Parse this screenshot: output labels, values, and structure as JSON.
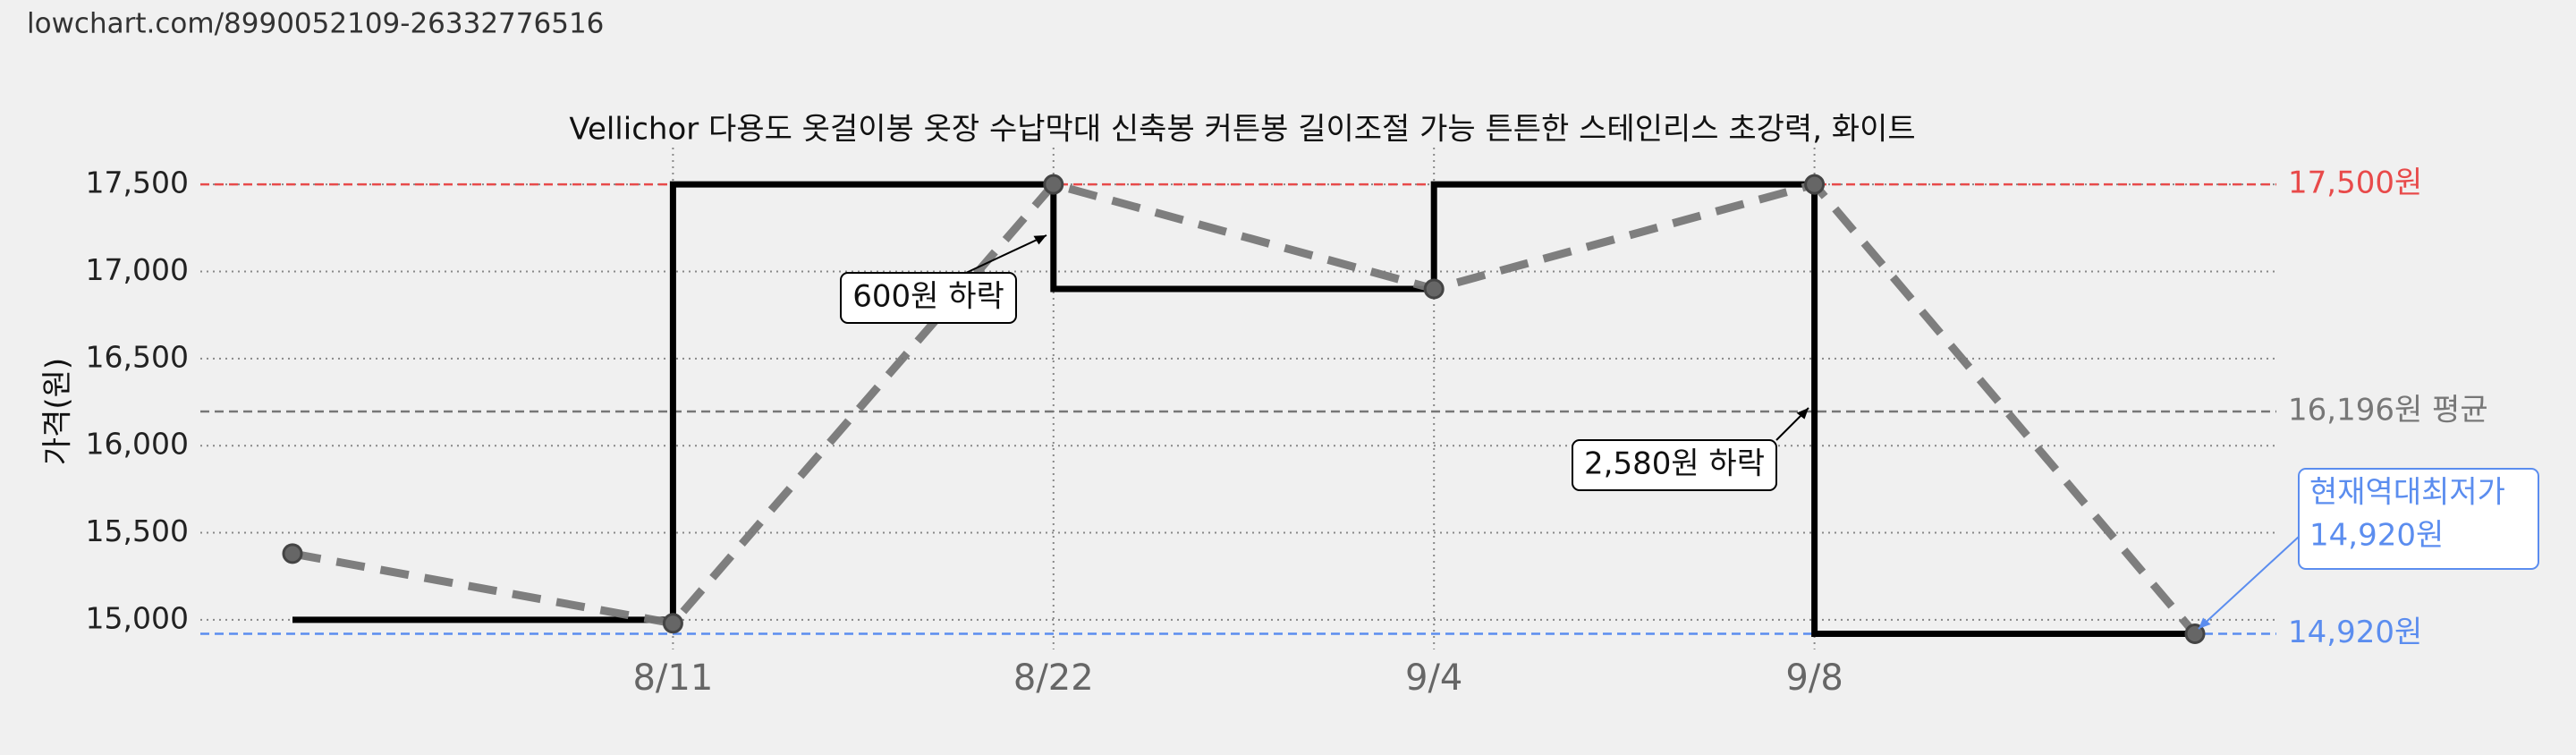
{
  "url": "lowchart.com/8990052109-26332776516",
  "chart_data": {
    "type": "line",
    "title": "Vellichor 다용도 옷걸이봉 옷장 수납막대 신축봉 커튼봉 길이조절 가능 튼튼한 스테인리스 초강력, 화이트",
    "y_label": "가격(원)",
    "categories": [
      null,
      "8/11",
      "8/22",
      "9/4",
      "9/8",
      null
    ],
    "series": [
      {
        "style": "dashed",
        "color": "#777777",
        "values": [
          15380,
          14980,
          17500,
          16900,
          17500,
          14920
        ]
      },
      {
        "style": "step",
        "color": "#000000",
        "values": [
          15000,
          17500,
          16900,
          17500,
          14920,
          14920
        ]
      }
    ],
    "ylim": [
      14830,
      17660
    ],
    "yticks": [
      {
        "value": 15000,
        "label": "15,000"
      },
      {
        "value": 15500,
        "label": "15,500"
      },
      {
        "value": 16000,
        "label": "16,000"
      },
      {
        "value": 16500,
        "label": "16,500"
      },
      {
        "value": 17000,
        "label": "17,000"
      },
      {
        "value": 17500,
        "label": "17,500"
      }
    ],
    "grid": true,
    "reference_lines": [
      {
        "value": 17500,
        "label": "17,500원",
        "color": "#e84a4a"
      },
      {
        "value": 16196,
        "label": "16,196원 평균",
        "color": "#777777"
      },
      {
        "value": 14920,
        "label": "14,920원",
        "color": "#5b8def"
      }
    ],
    "annotations": [
      {
        "lines": [
          "600원 하락"
        ],
        "color": "#000000"
      },
      {
        "lines": [
          "2,580원 하락"
        ],
        "color": "#000000"
      },
      {
        "lines": [
          "현재역대최저가",
          "14,920원"
        ],
        "color": "#5b8def"
      }
    ]
  }
}
